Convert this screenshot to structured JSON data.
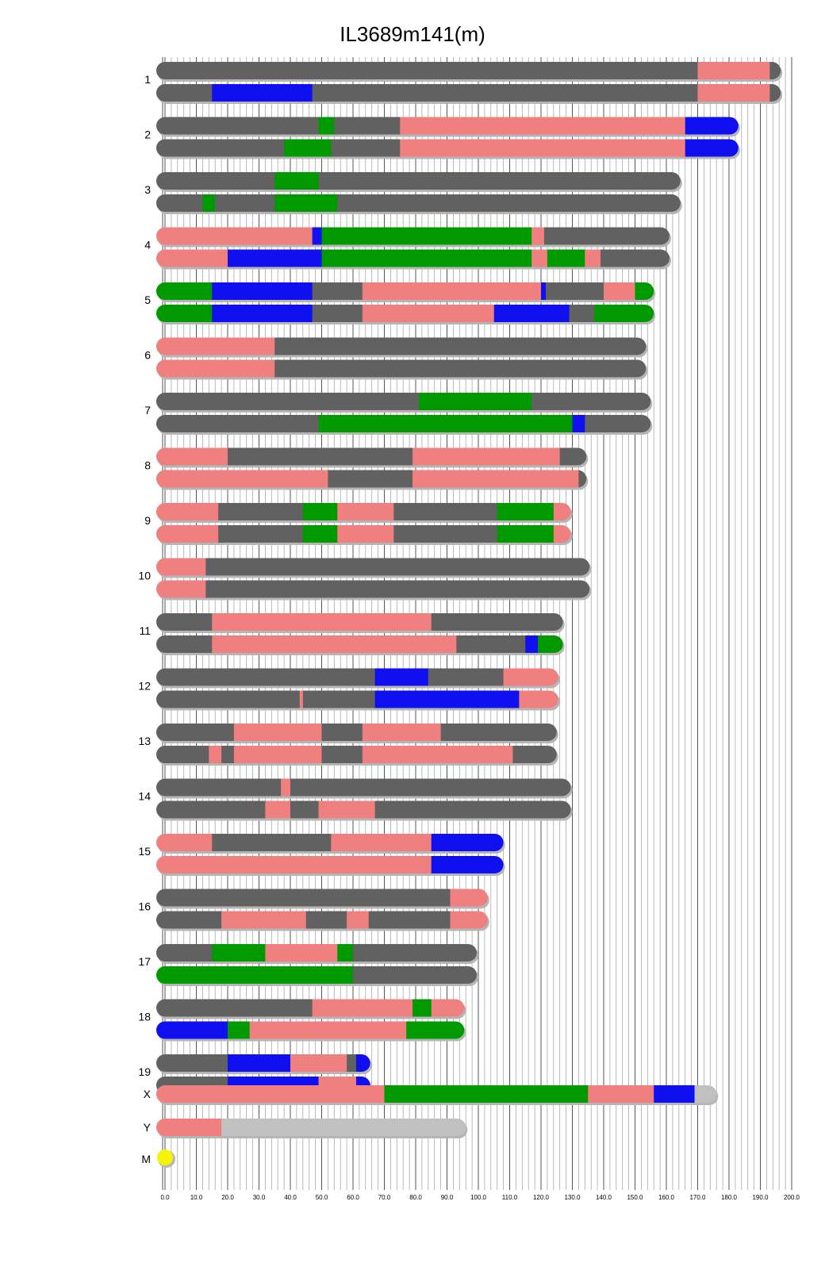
{
  "chart_data": {
    "type": "genome-karyotype",
    "title": "IL3689m141(m)",
    "xlim": [
      0,
      200
    ],
    "x_ticks": [
      "0.0",
      "10.0",
      "20.0",
      "30.0",
      "40.0",
      "50.0",
      "60.0",
      "70.0",
      "80.0",
      "90.0",
      "100.0",
      "110.0",
      "120.0",
      "130.0",
      "140.0",
      "150.0",
      "160.0",
      "170.0",
      "180.0",
      "190.0",
      "200.0"
    ],
    "colors": {
      "gray": "#616161",
      "pink": "#f08080",
      "blue": "#0f0fef",
      "green": "#009900",
      "light": "#c0c0c0",
      "yellow": "#f5f500"
    },
    "chromosomes": [
      {
        "label": "1",
        "length": 196.5,
        "strands": [
          [
            [
              0,
              170,
              "gray"
            ],
            [
              170,
              193,
              "pink"
            ],
            [
              193,
              196.5,
              "gray"
            ]
          ],
          [
            [
              0,
              15,
              "gray"
            ],
            [
              15,
              47,
              "blue"
            ],
            [
              47,
              170,
              "gray"
            ],
            [
              170,
              193,
              "pink"
            ],
            [
              193,
              196.5,
              "gray"
            ]
          ]
        ]
      },
      {
        "label": "2",
        "length": 183,
        "strands": [
          [
            [
              0,
              49,
              "gray"
            ],
            [
              49,
              54,
              "green"
            ],
            [
              54,
              75,
              "gray"
            ],
            [
              75,
              166,
              "pink"
            ],
            [
              166,
              183,
              "blue"
            ]
          ],
          [
            [
              0,
              38,
              "gray"
            ],
            [
              38,
              53,
              "green"
            ],
            [
              53,
              75,
              "gray"
            ],
            [
              75,
              166,
              "pink"
            ],
            [
              166,
              183,
              "blue"
            ]
          ]
        ]
      },
      {
        "label": "3",
        "length": 164.5,
        "strands": [
          [
            [
              0,
              35,
              "gray"
            ],
            [
              35,
              49,
              "green"
            ],
            [
              49,
              164.5,
              "gray"
            ]
          ],
          [
            [
              0,
              12,
              "gray"
            ],
            [
              12,
              16,
              "green"
            ],
            [
              16,
              35,
              "gray"
            ],
            [
              35,
              55,
              "green"
            ],
            [
              55,
              164.5,
              "gray"
            ]
          ]
        ]
      },
      {
        "label": "4",
        "length": 161,
        "strands": [
          [
            [
              0,
              47,
              "pink"
            ],
            [
              47,
              50,
              "blue"
            ],
            [
              50,
              117,
              "green"
            ],
            [
              117,
              121,
              "pink"
            ],
            [
              121,
              161,
              "gray"
            ]
          ],
          [
            [
              0,
              20,
              "pink"
            ],
            [
              20,
              50,
              "blue"
            ],
            [
              50,
              117,
              "green"
            ],
            [
              117,
              122,
              "pink"
            ],
            [
              122,
              134,
              "green"
            ],
            [
              134,
              139,
              "pink"
            ],
            [
              139,
              161,
              "gray"
            ]
          ]
        ]
      },
      {
        "label": "5",
        "length": 156,
        "strands": [
          [
            [
              0,
              15,
              "green"
            ],
            [
              15,
              47,
              "blue"
            ],
            [
              47,
              63,
              "gray"
            ],
            [
              63,
              120,
              "pink"
            ],
            [
              120,
              121.5,
              "blue"
            ],
            [
              121.5,
              140,
              "gray"
            ],
            [
              140,
              150,
              "pink"
            ],
            [
              150,
              156,
              "green"
            ]
          ],
          [
            [
              0,
              15,
              "green"
            ],
            [
              15,
              47,
              "blue"
            ],
            [
              47,
              63,
              "gray"
            ],
            [
              63,
              105,
              "pink"
            ],
            [
              105,
              129,
              "blue"
            ],
            [
              129,
              137,
              "gray"
            ],
            [
              137,
              156,
              "green"
            ]
          ]
        ]
      },
      {
        "label": "6",
        "length": 153.5,
        "strands": [
          [
            [
              0,
              35,
              "pink"
            ],
            [
              35,
              153.5,
              "gray"
            ]
          ],
          [
            [
              0,
              35,
              "pink"
            ],
            [
              35,
              153.5,
              "gray"
            ]
          ]
        ]
      },
      {
        "label": "7",
        "length": 155,
        "strands": [
          [
            [
              0,
              81,
              "gray"
            ],
            [
              81,
              117,
              "green"
            ],
            [
              117,
              155,
              "gray"
            ]
          ],
          [
            [
              0,
              49,
              "gray"
            ],
            [
              49,
              130,
              "green"
            ],
            [
              130,
              134,
              "blue"
            ],
            [
              134,
              155,
              "gray"
            ]
          ]
        ]
      },
      {
        "label": "8",
        "length": 134.5,
        "strands": [
          [
            [
              0,
              20,
              "pink"
            ],
            [
              20,
              79,
              "gray"
            ],
            [
              79,
              126,
              "pink"
            ],
            [
              126,
              134.5,
              "gray"
            ]
          ],
          [
            [
              0,
              52,
              "pink"
            ],
            [
              52,
              79,
              "gray"
            ],
            [
              79,
              132,
              "pink"
            ],
            [
              132,
              134.5,
              "gray"
            ]
          ]
        ]
      },
      {
        "label": "9",
        "length": 129.5,
        "strands": [
          [
            [
              0,
              17,
              "pink"
            ],
            [
              17,
              44,
              "gray"
            ],
            [
              44,
              55,
              "green"
            ],
            [
              55,
              73,
              "pink"
            ],
            [
              73,
              106,
              "gray"
            ],
            [
              106,
              124,
              "green"
            ],
            [
              124,
              129.5,
              "pink"
            ]
          ],
          [
            [
              0,
              17,
              "pink"
            ],
            [
              17,
              44,
              "gray"
            ],
            [
              44,
              55,
              "green"
            ],
            [
              55,
              73,
              "pink"
            ],
            [
              73,
              106,
              "gray"
            ],
            [
              106,
              124,
              "green"
            ],
            [
              124,
              129.5,
              "pink"
            ]
          ]
        ]
      },
      {
        "label": "10",
        "length": 135.5,
        "strands": [
          [
            [
              0,
              13,
              "pink"
            ],
            [
              13,
              135.5,
              "gray"
            ]
          ],
          [
            [
              0,
              13,
              "pink"
            ],
            [
              13,
              135.5,
              "gray"
            ]
          ]
        ]
      },
      {
        "label": "11",
        "length": 127,
        "strands": [
          [
            [
              0,
              15,
              "gray"
            ],
            [
              15,
              85,
              "pink"
            ],
            [
              85,
              127,
              "gray"
            ]
          ],
          [
            [
              0,
              15,
              "gray"
            ],
            [
              15,
              93,
              "pink"
            ],
            [
              93,
              115,
              "gray"
            ],
            [
              115,
              119,
              "blue"
            ],
            [
              119,
              127,
              "green"
            ]
          ]
        ]
      },
      {
        "label": "12",
        "length": 125.5,
        "strands": [
          [
            [
              0,
              67,
              "gray"
            ],
            [
              67,
              84,
              "blue"
            ],
            [
              84,
              108,
              "gray"
            ],
            [
              108,
              125.5,
              "pink"
            ]
          ],
          [
            [
              0,
              43,
              "gray"
            ],
            [
              43,
              44,
              "pink"
            ],
            [
              44,
              67,
              "gray"
            ],
            [
              67,
              113,
              "blue"
            ],
            [
              113,
              125.5,
              "pink"
            ]
          ]
        ]
      },
      {
        "label": "13",
        "length": 125,
        "strands": [
          [
            [
              0,
              22,
              "gray"
            ],
            [
              22,
              50,
              "pink"
            ],
            [
              50,
              63,
              "gray"
            ],
            [
              63,
              88,
              "pink"
            ],
            [
              88,
              125,
              "gray"
            ]
          ],
          [
            [
              0,
              14,
              "gray"
            ],
            [
              14,
              18,
              "pink"
            ],
            [
              18,
              22,
              "gray"
            ],
            [
              22,
              50,
              "pink"
            ],
            [
              50,
              63,
              "gray"
            ],
            [
              63,
              111,
              "pink"
            ],
            [
              111,
              125,
              "gray"
            ]
          ]
        ]
      },
      {
        "label": "14",
        "length": 129.5,
        "strands": [
          [
            [
              0,
              37,
              "gray"
            ],
            [
              37,
              40,
              "pink"
            ],
            [
              40,
              129.5,
              "gray"
            ]
          ],
          [
            [
              0,
              32,
              "gray"
            ],
            [
              32,
              40,
              "pink"
            ],
            [
              40,
              49,
              "gray"
            ],
            [
              49,
              67,
              "pink"
            ],
            [
              67,
              129.5,
              "gray"
            ]
          ]
        ]
      },
      {
        "label": "15",
        "length": 108,
        "strands": [
          [
            [
              0,
              15,
              "pink"
            ],
            [
              15,
              53,
              "gray"
            ],
            [
              53,
              85,
              "pink"
            ],
            [
              85,
              108,
              "blue"
            ]
          ],
          [
            [
              0,
              85,
              "pink"
            ],
            [
              85,
              108,
              "blue"
            ]
          ]
        ]
      },
      {
        "label": "16",
        "length": 103,
        "strands": [
          [
            [
              0,
              91,
              "gray"
            ],
            [
              91,
              103,
              "pink"
            ]
          ],
          [
            [
              0,
              18,
              "gray"
            ],
            [
              18,
              45,
              "pink"
            ],
            [
              45,
              58,
              "gray"
            ],
            [
              58,
              65,
              "pink"
            ],
            [
              65,
              91,
              "gray"
            ],
            [
              91,
              103,
              "pink"
            ]
          ]
        ]
      },
      {
        "label": "17",
        "length": 99.5,
        "strands": [
          [
            [
              0,
              15,
              "gray"
            ],
            [
              15,
              32,
              "green"
            ],
            [
              32,
              55,
              "pink"
            ],
            [
              55,
              60,
              "green"
            ],
            [
              60,
              99.5,
              "gray"
            ]
          ],
          [
            [
              0,
              60,
              "green"
            ],
            [
              60,
              99.5,
              "gray"
            ]
          ]
        ]
      },
      {
        "label": "18",
        "length": 95.5,
        "strands": [
          [
            [
              0,
              47,
              "gray"
            ],
            [
              47,
              79,
              "pink"
            ],
            [
              79,
              85,
              "green"
            ],
            [
              85,
              95.5,
              "pink"
            ]
          ],
          [
            [
              0,
              20,
              "blue"
            ],
            [
              20,
              27,
              "green"
            ],
            [
              27,
              77,
              "pink"
            ],
            [
              77,
              95.5,
              "green"
            ]
          ]
        ]
      },
      {
        "label": "19",
        "length": 65.5,
        "strands": [
          [
            [
              0,
              20,
              "gray"
            ],
            [
              20,
              40,
              "blue"
            ],
            [
              40,
              58,
              "pink"
            ],
            [
              58,
              61,
              "gray"
            ],
            [
              61,
              65.5,
              "blue"
            ]
          ],
          [
            [
              0,
              20,
              "gray"
            ],
            [
              20,
              49,
              "blue"
            ],
            [
              49,
              61,
              "pink"
            ],
            [
              61,
              65.5,
              "blue"
            ]
          ]
        ]
      },
      {
        "label": "X",
        "length": 176,
        "strands": [
          [
            [
              0,
              70,
              "pink"
            ],
            [
              70,
              135,
              "green"
            ],
            [
              135,
              156,
              "pink"
            ],
            [
              156,
              169,
              "blue"
            ],
            [
              169,
              176,
              "light"
            ]
          ]
        ]
      },
      {
        "label": "Y",
        "length": 96,
        "strands": [
          [
            [
              0,
              18,
              "pink"
            ],
            [
              18,
              96,
              "light"
            ]
          ]
        ]
      },
      {
        "label": "M",
        "length": 0,
        "strands": [
          [
            [
              0,
              0,
              "yellow"
            ]
          ]
        ]
      }
    ]
  }
}
